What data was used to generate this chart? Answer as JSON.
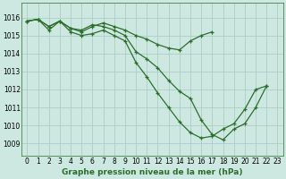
{
  "title": "Graphe pression niveau de la mer (hPa)",
  "background_color": "#cce8e0",
  "line_color": "#2d6e2d",
  "xlim": [
    -0.5,
    23.5
  ],
  "ylim": [
    1008.3,
    1016.8
  ],
  "yticks": [
    1009,
    1010,
    1011,
    1012,
    1013,
    1014,
    1015,
    1016
  ],
  "xticks": [
    0,
    1,
    2,
    3,
    4,
    5,
    6,
    7,
    8,
    9,
    10,
    11,
    12,
    13,
    14,
    15,
    16,
    17,
    18,
    19,
    20,
    21,
    22,
    23
  ],
  "line1_x": [
    0,
    1,
    2,
    3,
    4,
    5,
    6,
    7,
    8,
    9,
    10,
    11,
    12,
    13,
    14,
    15,
    16,
    17,
    18,
    19,
    20,
    21,
    22
  ],
  "line1_y": [
    1015.8,
    1015.9,
    1015.5,
    1015.8,
    1015.4,
    1015.3,
    1015.6,
    1015.5,
    1015.3,
    1015.0,
    1014.1,
    1013.7,
    1013.2,
    1012.5,
    1011.9,
    1011.5,
    1010.3,
    1009.5,
    1009.2,
    1009.8,
    1010.1,
    1011.0,
    1012.2
  ],
  "line2_x": [
    0,
    1,
    2,
    3,
    4,
    5,
    6,
    7,
    8,
    9,
    10,
    11,
    12,
    13,
    14,
    15,
    16,
    17
  ],
  "line2_y": [
    1015.8,
    1015.9,
    1015.5,
    1015.8,
    1015.4,
    1015.2,
    1015.5,
    1015.7,
    1015.5,
    1015.3,
    1015.0,
    1014.8,
    1014.5,
    1014.3,
    1014.2,
    1014.7,
    1015.0,
    1015.2
  ],
  "line3_x": [
    0,
    1,
    2,
    3,
    4,
    5,
    6,
    7,
    8,
    9,
    10,
    11,
    12,
    13,
    14,
    15,
    16,
    17,
    18,
    19,
    20,
    21,
    22
  ],
  "line3_y": [
    1015.8,
    1015.9,
    1015.3,
    1015.8,
    1015.2,
    1015.0,
    1015.1,
    1015.3,
    1015.0,
    1014.7,
    1013.5,
    1012.7,
    1011.8,
    1011.0,
    1010.2,
    1009.6,
    1009.3,
    1009.4,
    1009.8,
    1010.1,
    1010.9,
    1012.0,
    1012.2
  ],
  "marker": "+",
  "markersize": 3.5,
  "linewidth": 0.9,
  "tick_fontsize": 5.5,
  "xlabel_fontsize": 6.5
}
